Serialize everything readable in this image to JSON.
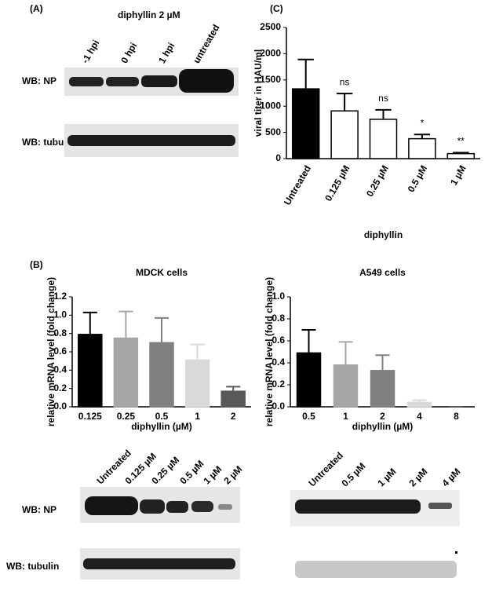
{
  "panel_labels": [
    "(A)",
    "(B)",
    "(C)"
  ],
  "blot_a": {
    "title": "diphyllin 2 µM",
    "lanes": [
      "-1 hpi",
      "0 hpi",
      "1 hpi",
      "untreated"
    ],
    "rows": [
      "WB: NP",
      "WB: tubulin"
    ]
  },
  "blot_b_mdck": {
    "lanes": [
      "Untreated",
      "0.125 µM",
      "0.25 µM",
      "0.5 µM",
      "1 µM",
      "2 µM"
    ],
    "rows": [
      "WB: NP",
      "WB: tubulin"
    ]
  },
  "blot_b_a549": {
    "lanes": [
      "Untreated",
      "0.5 µM",
      "1 µM",
      "2 µM",
      "4 µM"
    ]
  },
  "chart_data": [
    {
      "type": "bar",
      "ylabel": "viral titer in HAU/ml",
      "xlabel": "diphyllin",
      "categories": [
        "Untreated",
        "0.125 µM",
        "0.25 µM",
        "0.5 µM",
        "1 µM"
      ],
      "values": [
        1330,
        910,
        750,
        380,
        95
      ],
      "errors": [
        560,
        330,
        180,
        80,
        20
      ],
      "colors": [
        "#000000",
        "#ffffff",
        "#ffffff",
        "#ffffff",
        "#ffffff"
      ],
      "annotations": [
        null,
        "ns",
        "ns",
        "*",
        "**"
      ],
      "ylim": [
        0,
        2500
      ],
      "yticks": [
        0,
        500,
        1000,
        1500,
        2000,
        2500
      ]
    },
    {
      "type": "bar",
      "title": "MDCK cells",
      "ylabel": "relative mRNA level (fold change)",
      "xlabel": "diphyllin (µM)",
      "categories": [
        "0.125",
        "0.25",
        "0.5",
        "1",
        "2"
      ],
      "values": [
        0.79,
        0.75,
        0.7,
        0.51,
        0.17
      ],
      "errors": [
        0.24,
        0.29,
        0.27,
        0.17,
        0.05
      ],
      "colors": [
        "#000000",
        "#a6a6a6",
        "#808080",
        "#d9d9d9",
        "#595959"
      ],
      "ylim": [
        0,
        1.2
      ],
      "yticks": [
        {
          "value": 0,
          "label": "0.0"
        },
        0.2,
        0.4,
        0.6,
        0.8,
        {
          "value": 1,
          "label": "1.0"
        },
        1.2
      ]
    },
    {
      "type": "bar",
      "title": "A549 cells",
      "ylabel": "relative mRNA level (fold change)",
      "xlabel": "diphyllin (µM)",
      "categories": [
        "0.5",
        "1",
        "2",
        "4",
        "8"
      ],
      "values": [
        0.49,
        0.38,
        0.33,
        0.04,
        0.0
      ],
      "errors": [
        0.21,
        0.21,
        0.14,
        0.02,
        0.0
      ],
      "colors": [
        "#000000",
        "#a6a6a6",
        "#808080",
        "#d9d9d9",
        "#595959"
      ],
      "ylim": [
        0,
        1.0
      ],
      "yticks": [
        {
          "value": 0,
          "label": "0.0"
        },
        0.2,
        0.4,
        0.6,
        0.8,
        {
          "value": 1,
          "label": "1.0"
        }
      ]
    }
  ]
}
